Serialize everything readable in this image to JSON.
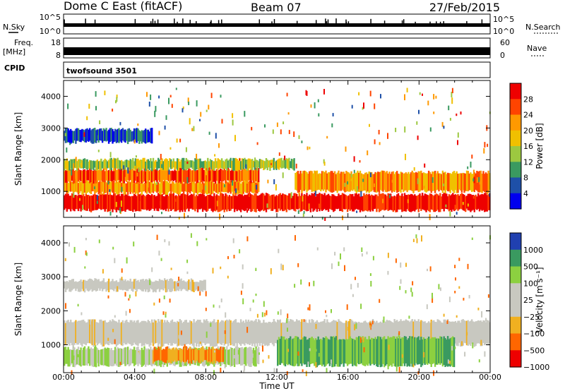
{
  "header": {
    "radar_title": "Dome C East (fitACF)",
    "beam": "Beam 07",
    "date": "27/Feb/2015"
  },
  "strip": {
    "nsky_label": "N.Sky",
    "nsearch_label": "N.Search",
    "freq_label_line1": "Freq.",
    "freq_label_line2": "[MHz]",
    "nave_label": "Nave",
    "cpid_label": "CPID",
    "cpid_value": "twofsound 3501",
    "noise_left_ticks": [
      "10^5",
      "10^0"
    ],
    "noise_right_ticks": [
      "10^5",
      "10^0"
    ],
    "freq_left_ticks": [
      "18",
      "8"
    ],
    "freq_right_ticks": [
      "60",
      "0"
    ]
  },
  "chart_data": [
    {
      "type": "heatmap",
      "id": "power",
      "quantity": "Power",
      "ylabel": "Slant Range [km]",
      "xlabel": "Time UT",
      "xlim": [
        0,
        24
      ],
      "ylim": [
        180,
        4500
      ],
      "x_ticks": [
        "00:00",
        "04:00",
        "08:00",
        "12:00",
        "16:00",
        "20:00",
        "00:00"
      ],
      "y_ticks": [
        1000,
        2000,
        3000,
        4000
      ],
      "colorbar": {
        "label": "Power [dB]",
        "tick_labels": [
          "28",
          "24",
          "20",
          "16",
          "12",
          "8",
          "4"
        ],
        "colors": [
          "#ee0000",
          "#ff4400",
          "#ff9900",
          "#f0c000",
          "#9cc840",
          "#3a9a60",
          "#1e50a8",
          "#0000ee"
        ]
      },
      "bands": [
        {
          "range_km": [
            400,
            900
          ],
          "t": [
            0,
            24
          ],
          "level": 28
        },
        {
          "range_km": [
            950,
            1300
          ],
          "t": [
            0,
            11
          ],
          "level": 20
        },
        {
          "range_km": [
            1300,
            1700
          ],
          "t": [
            0,
            11
          ],
          "level": 24
        },
        {
          "range_km": [
            1700,
            2000
          ],
          "t": [
            0,
            13
          ],
          "level": 12
        },
        {
          "range_km": [
            2550,
            2950
          ],
          "t": [
            0,
            5
          ],
          "level": 4
        },
        {
          "range_km": [
            1000,
            1600
          ],
          "t": [
            13,
            24
          ],
          "level": 20
        }
      ]
    },
    {
      "type": "heatmap",
      "id": "velocity",
      "quantity": "Velocity",
      "ylabel": "Slant Range [km]",
      "xlabel": "Time UT",
      "xlim": [
        0,
        24
      ],
      "ylim": [
        180,
        4500
      ],
      "x_ticks": [
        "00:00",
        "04:00",
        "08:00",
        "12:00",
        "16:00",
        "20:00",
        "00:00"
      ],
      "y_ticks": [
        1000,
        2000,
        3000,
        4000
      ],
      "colorbar": {
        "label": "Velocity [m s⁻¹]",
        "tick_labels": [
          "1000",
          "500",
          "100",
          "25",
          "−25",
          "−100",
          "−500",
          "−1000"
        ],
        "colors": [
          "#2040b0",
          "#3a9a60",
          "#8cd040",
          "#c8c8c0",
          "#c8c8c0",
          "#f0b020",
          "#ff6600",
          "#ee0000"
        ]
      },
      "bands": [
        {
          "range_km": [
            400,
            900
          ],
          "t": [
            0,
            11
          ],
          "value": 100
        },
        {
          "range_km": [
            500,
            900
          ],
          "t": [
            5,
            9
          ],
          "value": -100
        },
        {
          "range_km": [
            1000,
            1700
          ],
          "t": [
            0,
            24
          ],
          "value": 0
        },
        {
          "range_km": [
            400,
            1200
          ],
          "t": [
            12,
            22
          ],
          "value": 500
        },
        {
          "range_km": [
            2600,
            2900
          ],
          "t": [
            0,
            8
          ],
          "value": 0
        }
      ]
    }
  ]
}
